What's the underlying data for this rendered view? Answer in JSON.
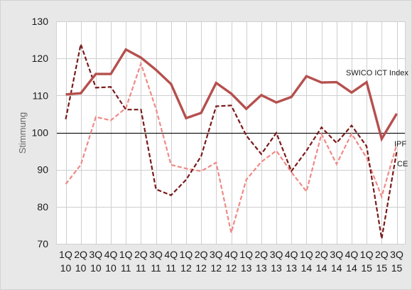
{
  "chart_data": {
    "type": "line",
    "title": "",
    "xlabel": "",
    "ylabel": "Stimmung",
    "ylim": [
      70,
      130
    ],
    "yticks": [
      70,
      80,
      90,
      100,
      110,
      120,
      130
    ],
    "reference_line": 100,
    "grid": true,
    "categories": [
      {
        "q": "1Q",
        "y": "10"
      },
      {
        "q": "2Q",
        "y": "10"
      },
      {
        "q": "3Q",
        "y": "10"
      },
      {
        "q": "4Q",
        "y": "10"
      },
      {
        "q": "1Q",
        "y": "11"
      },
      {
        "q": "2Q",
        "y": "11"
      },
      {
        "q": "3Q",
        "y": "11"
      },
      {
        "q": "4Q",
        "y": "11"
      },
      {
        "q": "1Q",
        "y": "12"
      },
      {
        "q": "2Q",
        "y": "12"
      },
      {
        "q": "3Q",
        "y": "12"
      },
      {
        "q": "4Q",
        "y": "12"
      },
      {
        "q": "1Q",
        "y": "13"
      },
      {
        "q": "2Q",
        "y": "13"
      },
      {
        "q": "3Q",
        "y": "13"
      },
      {
        "q": "4Q",
        "y": "13"
      },
      {
        "q": "1Q",
        "y": "14"
      },
      {
        "q": "2Q",
        "y": "14"
      },
      {
        "q": "3Q",
        "y": "14"
      },
      {
        "q": "4Q",
        "y": "14"
      },
      {
        "q": "1Q",
        "y": "15"
      },
      {
        "q": "2Q",
        "y": "15"
      },
      {
        "q": "3Q",
        "y": "15"
      }
    ],
    "series": [
      {
        "name": "SWICO ICT Index",
        "color": "#b5504e",
        "style": "solid",
        "values": [
          110.3,
          110.6,
          115.8,
          115.8,
          122.4,
          120.2,
          116.9,
          113.1,
          103.9,
          105.3,
          113.4,
          110.5,
          106.4,
          110.1,
          108.1,
          109.6,
          115.2,
          113.5,
          113.6,
          110.8,
          113.6,
          98.3,
          105.1
        ]
      },
      {
        "name": "IPF",
        "color": "#7a1a1a",
        "style": "dashed",
        "values": [
          103.6,
          123.8,
          112.1,
          112.3,
          106.2,
          106.2,
          84.7,
          83.1,
          87.3,
          93.6,
          107.1,
          107.3,
          99.2,
          94.2,
          99.9,
          89.6,
          95.1,
          101.4,
          97.2,
          101.9,
          96.3,
          71.4,
          94.9
        ]
      },
      {
        "name": "CE",
        "color": "#ef8a86",
        "style": "dashed",
        "values": [
          86.1,
          91.3,
          104.2,
          103.3,
          106.6,
          118.6,
          106.4,
          91.3,
          90.3,
          89.6,
          91.9,
          73.0,
          87.3,
          92.1,
          95.1,
          89.3,
          84.1,
          99.6,
          91.5,
          99.7,
          93.2,
          82.7,
          96.8
        ]
      }
    ]
  }
}
